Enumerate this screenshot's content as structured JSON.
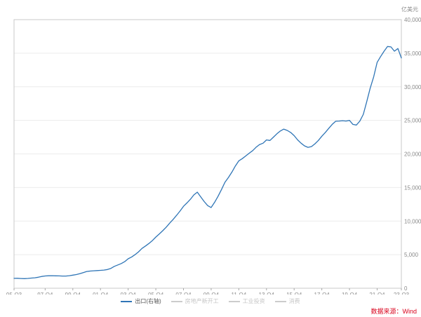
{
  "chart_data": {
    "type": "line",
    "title": "",
    "unit": "亿美元",
    "source": "数据来源：Wind",
    "xlabel": "",
    "ylabel": "",
    "ylim": [
      0,
      40000
    ],
    "y_step": 5000,
    "grid": true,
    "legend_position": "bottom",
    "y_ticks": [
      "0",
      "5,000",
      "10,000",
      "15,000",
      "20,000",
      "25,000",
      "30,000",
      "35,000",
      "40,000"
    ],
    "x_ticks": [
      {
        "i": 0,
        "label": "95-Q3"
      },
      {
        "i": 9,
        "label": "97-Q4"
      },
      {
        "i": 17,
        "label": "99-Q4"
      },
      {
        "i": 25,
        "label": "01-Q4"
      },
      {
        "i": 33,
        "label": "03-Q4"
      },
      {
        "i": 41,
        "label": "05-Q4"
      },
      {
        "i": 49,
        "label": "07-Q4"
      },
      {
        "i": 57,
        "label": "09-Q4"
      },
      {
        "i": 65,
        "label": "11-Q4"
      },
      {
        "i": 73,
        "label": "13-Q4"
      },
      {
        "i": 81,
        "label": "15-Q4"
      },
      {
        "i": 89,
        "label": "17-Q4"
      },
      {
        "i": 97,
        "label": "19-Q4"
      },
      {
        "i": 105,
        "label": "21-Q4"
      },
      {
        "i": 112,
        "label": "23-Q3"
      }
    ],
    "series": [
      {
        "name": "出口(右轴)",
        "color": "#2f75b6",
        "values": [
          1470,
          1487,
          1450,
          1430,
          1460,
          1511,
          1560,
          1640,
          1750,
          1827,
          1860,
          1870,
          1850,
          1837,
          1820,
          1815,
          1870,
          1949,
          2040,
          2160,
          2330,
          2492,
          2560,
          2600,
          2630,
          2661,
          2700,
          2790,
          2960,
          3256,
          3470,
          3680,
          3960,
          4382,
          4660,
          5000,
          5420,
          5933,
          6290,
          6660,
          7090,
          7620,
          8080,
          8560,
          9100,
          9689,
          10250,
          10850,
          11500,
          12200,
          12700,
          13250,
          13900,
          14307,
          13600,
          12900,
          12300,
          12016,
          12800,
          13700,
          14700,
          15780,
          16500,
          17300,
          18200,
          18980,
          19300,
          19700,
          20100,
          20490,
          21000,
          21400,
          21600,
          22090,
          22000,
          22500,
          23000,
          23420,
          23700,
          23500,
          23200,
          22730,
          22100,
          21600,
          21200,
          20980,
          21100,
          21500,
          22000,
          22630,
          23200,
          23800,
          24400,
          24870,
          24900,
          24950,
          24900,
          24990,
          24400,
          24300,
          24900,
          25900,
          27800,
          29800,
          31500,
          33640,
          34500,
          35300,
          36000,
          35940,
          35300,
          35700,
          34300
        ]
      }
    ],
    "legend": [
      {
        "label": "出口(右轴)",
        "color": "#2f75b6",
        "active": true
      },
      {
        "label": "房地产新开工",
        "color": "#cccccc",
        "active": false
      },
      {
        "label": "工业投资",
        "color": "#cccccc",
        "active": false
      },
      {
        "label": "消费",
        "color": "#cccccc",
        "active": false
      }
    ]
  }
}
